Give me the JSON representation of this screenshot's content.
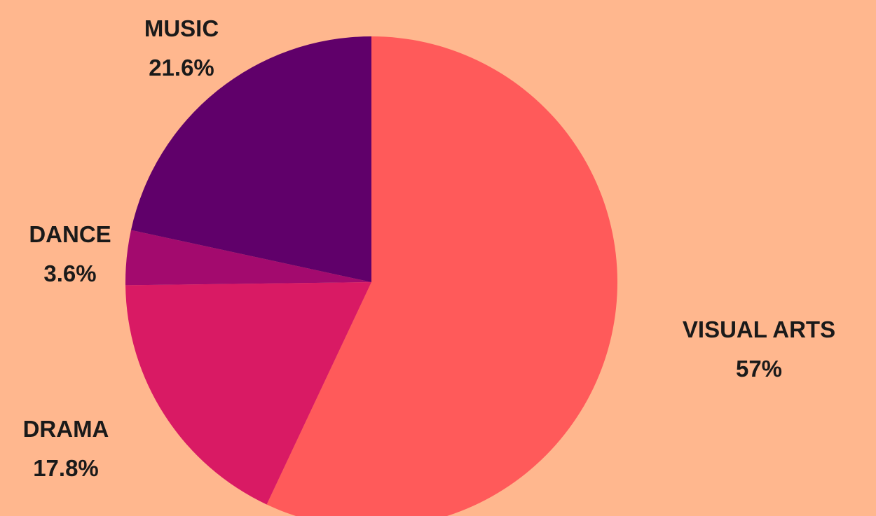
{
  "page": {
    "background": "#ffb78e"
  },
  "chart_data": {
    "type": "pie",
    "title": "",
    "start_angle_deg": 0,
    "direction": "clockwise",
    "categories": [
      "VISUAL ARTS",
      "DRAMA",
      "DANCE",
      "MUSIC"
    ],
    "values": [
      57,
      17.8,
      3.6,
      21.6
    ],
    "value_labels": [
      "57%",
      "17.8%",
      "3.6%",
      "21.6%"
    ],
    "colors": [
      "#ff5a5a",
      "#d91a64",
      "#a30a6e",
      "#60006a"
    ],
    "legend": "none"
  }
}
